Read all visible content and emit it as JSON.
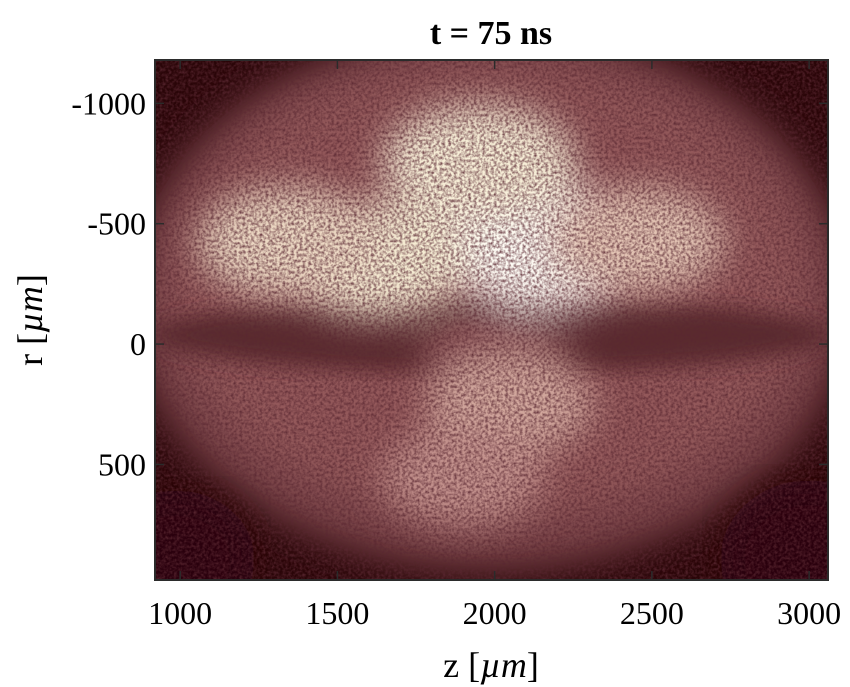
{
  "chart_data": {
    "type": "heatmap",
    "title": "t = 75 ns",
    "xlabel_prefix": "z [",
    "xlabel_unit": "µm",
    "xlabel_suffix": "]",
    "ylabel_prefix": "r [",
    "ylabel_unit": "µm",
    "ylabel_suffix": "]",
    "xlim": [
      920,
      3060
    ],
    "ylim": [
      -1180,
      980
    ],
    "y_reversed": true,
    "x_ticks": [
      1000,
      1500,
      2000,
      2500,
      3000
    ],
    "x_tick_labels": [
      "1000",
      "1500",
      "2000",
      "2500",
      "3000"
    ],
    "y_ticks": [
      -1000,
      -500,
      0,
      500
    ],
    "y_tick_labels": [
      "-1000",
      "-500",
      "0",
      "500"
    ],
    "grid": false,
    "colormap": [
      "#2a0508",
      "#6b3438",
      "#a86e70",
      "#d9b0a4",
      "#f6ecd2",
      "#fffdf6"
    ],
    "intensity_regions": [
      {
        "z": 2170,
        "r": -400,
        "intensity": 1.0
      },
      {
        "z": 1950,
        "r": -750,
        "intensity": 0.82
      },
      {
        "z": 1620,
        "r": -350,
        "intensity": 0.8
      },
      {
        "z": 1350,
        "r": -420,
        "intensity": 0.72
      },
      {
        "z": 2450,
        "r": -430,
        "intensity": 0.65
      },
      {
        "z": 2000,
        "r": 50,
        "intensity": 0.3
      },
      {
        "z": 2050,
        "r": 250,
        "intensity": 0.55
      },
      {
        "z": 1900,
        "r": 550,
        "intensity": 0.48
      }
    ]
  }
}
